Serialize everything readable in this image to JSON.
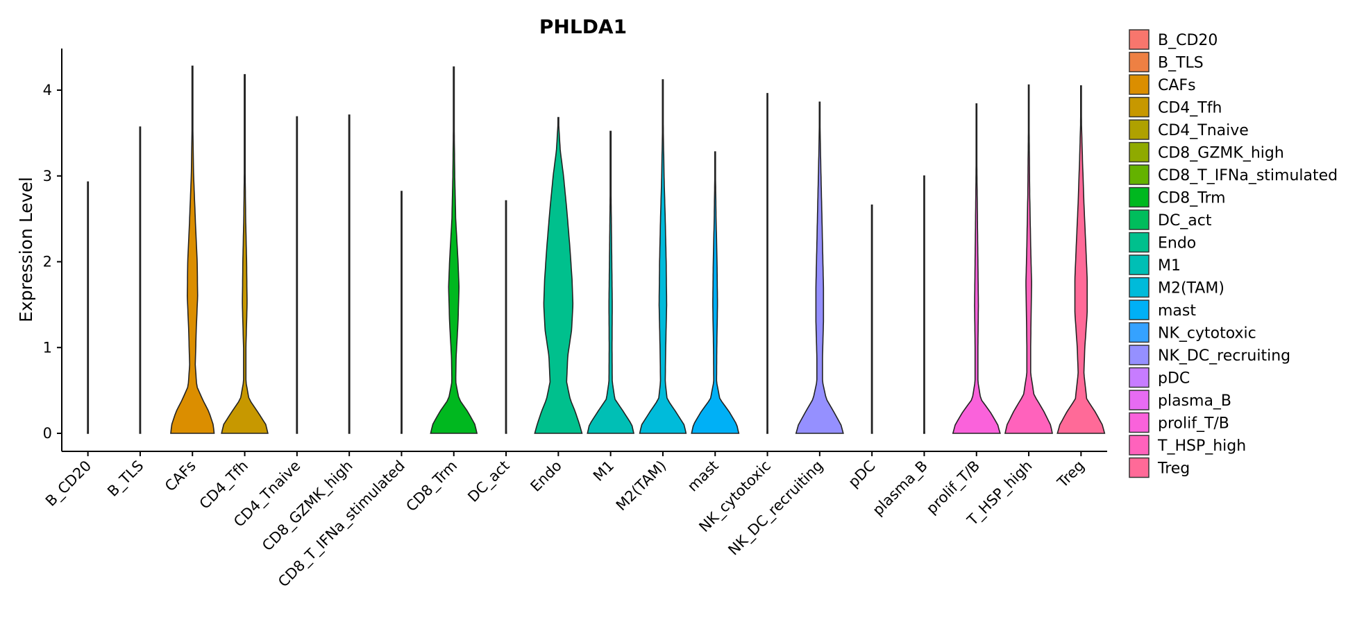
{
  "chart_data": {
    "type": "violin",
    "title": "PHLDA1",
    "xlabel": "",
    "ylabel": "Expression Level",
    "ylim": [
      -0.2,
      4.5
    ],
    "yticks": [
      0,
      1,
      2,
      3,
      4
    ],
    "legend_position": "right",
    "categories": [
      {
        "name": "B_CD20",
        "color": "#F8766D",
        "max": 2.93,
        "profile": [
          [
            0,
            0.02
          ],
          [
            0.02,
            0.004
          ],
          [
            0.1,
            0.001
          ],
          [
            2.93,
            0
          ]
        ]
      },
      {
        "name": "B_TLS",
        "color": "#EE8043",
        "max": 3.57,
        "profile": [
          [
            0,
            0.02
          ],
          [
            0.02,
            0.004
          ],
          [
            0.1,
            0.001
          ],
          [
            3.57,
            0
          ]
        ]
      },
      {
        "name": "CAFs",
        "color": "#DB8E00",
        "max": 4.28,
        "profile": [
          [
            0,
            0.92
          ],
          [
            0.1,
            0.88
          ],
          [
            0.25,
            0.7
          ],
          [
            0.4,
            0.42
          ],
          [
            0.55,
            0.18
          ],
          [
            0.8,
            0.12
          ],
          [
            1.2,
            0.16
          ],
          [
            1.6,
            0.22
          ],
          [
            2.0,
            0.2
          ],
          [
            2.5,
            0.12
          ],
          [
            3.0,
            0.05
          ],
          [
            3.5,
            0.02
          ],
          [
            4.28,
            0
          ]
        ]
      },
      {
        "name": "CD4_Tfh",
        "color": "#C79800",
        "max": 4.18,
        "profile": [
          [
            0,
            0.98
          ],
          [
            0.1,
            0.9
          ],
          [
            0.25,
            0.55
          ],
          [
            0.4,
            0.18
          ],
          [
            0.6,
            0.05
          ],
          [
            1.0,
            0.05
          ],
          [
            1.5,
            0.1
          ],
          [
            2.0,
            0.08
          ],
          [
            2.5,
            0.04
          ],
          [
            3.0,
            0.02
          ],
          [
            4.18,
            0
          ]
        ]
      },
      {
        "name": "CD4_Tnaive",
        "color": "#AFA100",
        "max": 3.69,
        "profile": [
          [
            0,
            0.02
          ],
          [
            0.02,
            0.004
          ],
          [
            0.1,
            0.001
          ],
          [
            3.69,
            0
          ]
        ]
      },
      {
        "name": "CD8_GZMK_high",
        "color": "#8FAA00",
        "max": 3.71,
        "profile": [
          [
            0,
            0.02
          ],
          [
            0.02,
            0.004
          ],
          [
            0.1,
            0.001
          ],
          [
            3.71,
            0
          ]
        ]
      },
      {
        "name": "CD8_T_IFNa_stimulated",
        "color": "#64B200",
        "max": 2.82,
        "profile": [
          [
            0,
            0.02
          ],
          [
            0.02,
            0.004
          ],
          [
            0.1,
            0.001
          ],
          [
            2.82,
            0
          ]
        ]
      },
      {
        "name": "CD8_Trm",
        "color": "#00B81F",
        "max": 4.27,
        "profile": [
          [
            0,
            0.98
          ],
          [
            0.1,
            0.9
          ],
          [
            0.25,
            0.6
          ],
          [
            0.4,
            0.22
          ],
          [
            0.6,
            0.08
          ],
          [
            0.9,
            0.1
          ],
          [
            1.3,
            0.18
          ],
          [
            1.7,
            0.22
          ],
          [
            2.0,
            0.18
          ],
          [
            2.5,
            0.08
          ],
          [
            3.0,
            0.04
          ],
          [
            3.5,
            0.02
          ],
          [
            4.27,
            0
          ]
        ]
      },
      {
        "name": "DC_act",
        "color": "#00BD5C",
        "max": 2.71,
        "profile": [
          [
            0,
            0.02
          ],
          [
            0.02,
            0.004
          ],
          [
            0.1,
            0.001
          ],
          [
            2.71,
            0
          ]
        ]
      },
      {
        "name": "Endo",
        "color": "#00C08D",
        "max": 3.68,
        "profile": [
          [
            0,
            1.0
          ],
          [
            0.1,
            0.9
          ],
          [
            0.25,
            0.72
          ],
          [
            0.4,
            0.5
          ],
          [
            0.6,
            0.35
          ],
          [
            0.9,
            0.4
          ],
          [
            1.2,
            0.56
          ],
          [
            1.5,
            0.62
          ],
          [
            1.8,
            0.58
          ],
          [
            2.2,
            0.48
          ],
          [
            2.6,
            0.36
          ],
          [
            3.0,
            0.22
          ],
          [
            3.3,
            0.08
          ],
          [
            3.68,
            0
          ]
        ]
      },
      {
        "name": "M1",
        "color": "#00BFB5",
        "max": 3.52,
        "profile": [
          [
            0,
            0.98
          ],
          [
            0.1,
            0.9
          ],
          [
            0.25,
            0.55
          ],
          [
            0.4,
            0.18
          ],
          [
            0.6,
            0.07
          ],
          [
            1.0,
            0.06
          ],
          [
            1.5,
            0.07
          ],
          [
            2.0,
            0.05
          ],
          [
            2.5,
            0.03
          ],
          [
            3.0,
            0.01
          ],
          [
            3.52,
            0
          ]
        ]
      },
      {
        "name": "M2(TAM)",
        "color": "#00BBDA",
        "max": 4.12,
        "profile": [
          [
            0,
            0.98
          ],
          [
            0.1,
            0.9
          ],
          [
            0.25,
            0.55
          ],
          [
            0.4,
            0.18
          ],
          [
            0.6,
            0.1
          ],
          [
            1.0,
            0.12
          ],
          [
            1.5,
            0.16
          ],
          [
            2.0,
            0.14
          ],
          [
            2.5,
            0.1
          ],
          [
            3.0,
            0.05
          ],
          [
            3.5,
            0.02
          ],
          [
            4.12,
            0
          ]
        ]
      },
      {
        "name": "mast",
        "color": "#00B0F6",
        "max": 3.28,
        "profile": [
          [
            0,
            1.0
          ],
          [
            0.1,
            0.92
          ],
          [
            0.25,
            0.6
          ],
          [
            0.4,
            0.2
          ],
          [
            0.6,
            0.06
          ],
          [
            1.0,
            0.07
          ],
          [
            1.5,
            0.1
          ],
          [
            2.0,
            0.08
          ],
          [
            2.5,
            0.04
          ],
          [
            3.28,
            0
          ]
        ]
      },
      {
        "name": "NK_cytotoxic",
        "color": "#35A2FF",
        "max": 3.96,
        "profile": [
          [
            0,
            0.02
          ],
          [
            0.02,
            0.004
          ],
          [
            0.1,
            0.001
          ],
          [
            3.96,
            0
          ]
        ]
      },
      {
        "name": "NK_DC_recruiting",
        "color": "#9590FF",
        "max": 3.86,
        "profile": [
          [
            0,
            1.0
          ],
          [
            0.1,
            0.9
          ],
          [
            0.25,
            0.6
          ],
          [
            0.4,
            0.28
          ],
          [
            0.6,
            0.12
          ],
          [
            0.9,
            0.12
          ],
          [
            1.3,
            0.16
          ],
          [
            1.7,
            0.16
          ],
          [
            2.2,
            0.12
          ],
          [
            2.7,
            0.08
          ],
          [
            3.2,
            0.04
          ],
          [
            3.86,
            0
          ]
        ]
      },
      {
        "name": "pDC",
        "color": "#C77CFF",
        "max": 2.66,
        "profile": [
          [
            0,
            0.02
          ],
          [
            0.02,
            0.004
          ],
          [
            0.1,
            0.001
          ],
          [
            2.66,
            0
          ]
        ]
      },
      {
        "name": "plasma_B",
        "color": "#E76BF3",
        "max": 3.0,
        "profile": [
          [
            0,
            0.02
          ],
          [
            0.02,
            0.004
          ],
          [
            0.1,
            0.001
          ],
          [
            3.0,
            0
          ]
        ]
      },
      {
        "name": "prolif_T/B",
        "color": "#FA62DB",
        "max": 3.84,
        "profile": [
          [
            0,
            1.0
          ],
          [
            0.1,
            0.9
          ],
          [
            0.25,
            0.58
          ],
          [
            0.4,
            0.18
          ],
          [
            0.6,
            0.06
          ],
          [
            1.0,
            0.06
          ],
          [
            1.5,
            0.08
          ],
          [
            2.0,
            0.06
          ],
          [
            2.5,
            0.04
          ],
          [
            3.0,
            0.02
          ],
          [
            3.84,
            0
          ]
        ]
      },
      {
        "name": "T_HSP_high",
        "color": "#FF62BC",
        "max": 4.06,
        "profile": [
          [
            0,
            1.0
          ],
          [
            0.1,
            0.92
          ],
          [
            0.25,
            0.65
          ],
          [
            0.45,
            0.22
          ],
          [
            0.7,
            0.08
          ],
          [
            1.0,
            0.08
          ],
          [
            1.4,
            0.1
          ],
          [
            1.75,
            0.12
          ],
          [
            2.2,
            0.08
          ],
          [
            2.8,
            0.04
          ],
          [
            3.4,
            0.02
          ],
          [
            4.06,
            0
          ]
        ]
      },
      {
        "name": "Treg",
        "color": "#FF6A98",
        "max": 4.05,
        "profile": [
          [
            0,
            1.0
          ],
          [
            0.1,
            0.9
          ],
          [
            0.25,
            0.6
          ],
          [
            0.4,
            0.24
          ],
          [
            0.7,
            0.12
          ],
          [
            1.0,
            0.16
          ],
          [
            1.4,
            0.26
          ],
          [
            1.8,
            0.26
          ],
          [
            2.2,
            0.2
          ],
          [
            2.7,
            0.12
          ],
          [
            3.2,
            0.06
          ],
          [
            3.6,
            0.02
          ],
          [
            4.05,
            0
          ]
        ]
      }
    ]
  }
}
